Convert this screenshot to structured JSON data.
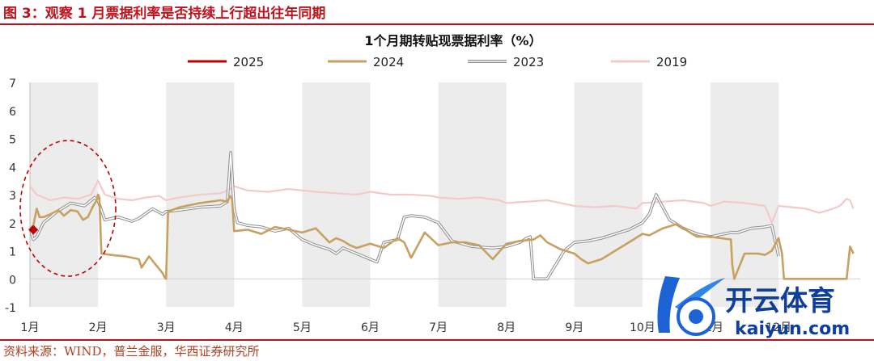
{
  "figure_label": "图 3：观察 1 月票据利率是否持续上行超出往年同期",
  "source_note": "资料来源：WIND，普兰金服，华西证券研究所",
  "watermark": {
    "brand_cn": "开云体育",
    "brand_en": "kaiyun.com"
  },
  "colors": {
    "accent": "#c0121c",
    "s2025": "#c00000",
    "s2024": "#c8a060",
    "s2023": "#a6a6a6",
    "s2019": "#f4c9c9",
    "band": "#ececec",
    "circle": "#c00000"
  },
  "chart_data": {
    "type": "line",
    "title": "1个月期转贴现票据利率（%）",
    "ylim": [
      -1,
      7
    ],
    "yticks": [
      "-1",
      "0",
      "1",
      "2",
      "3",
      "4",
      "5",
      "6",
      "7"
    ],
    "xlim": [
      0,
      12.2
    ],
    "xticks": [
      "1月",
      "2月",
      "3月",
      "4月",
      "5月",
      "6月",
      "7月",
      "8月",
      "9月",
      "10月",
      "11月",
      "12月"
    ],
    "shaded_month_bands": [
      [
        0,
        1
      ],
      [
        2,
        3
      ],
      [
        4,
        5
      ],
      [
        6,
        7
      ],
      [
        8,
        9
      ],
      [
        10,
        11
      ]
    ],
    "legend": "top-center",
    "series": [
      {
        "name": "2025",
        "color": "#c00000",
        "marker": "diamond",
        "x": [
          0.05
        ],
        "y": [
          1.75
        ]
      },
      {
        "name": "2024",
        "color": "#c8a060",
        "x": [
          0.0,
          0.05,
          0.1,
          0.14,
          0.2,
          0.3,
          0.42,
          0.5,
          0.6,
          0.7,
          0.78,
          0.85,
          0.93,
          0.98,
          1.0,
          1.02,
          1.05,
          1.2,
          1.4,
          1.6,
          1.64,
          1.75,
          1.85,
          1.95,
          1.98,
          2.0,
          2.03,
          2.2,
          2.5,
          2.8,
          2.9,
          2.94,
          2.97,
          3.0,
          3.2,
          3.4,
          3.6,
          3.8,
          4.0,
          4.2,
          4.3,
          4.4,
          4.5,
          4.6,
          4.7,
          4.8,
          5.0,
          5.2,
          5.4,
          5.5,
          5.6,
          5.7,
          5.8,
          6.0,
          6.2,
          6.4,
          6.6,
          6.8,
          7.0,
          7.2,
          7.4,
          7.5,
          7.6,
          7.8,
          8.0,
          8.1,
          8.2,
          8.4,
          8.6,
          8.8,
          9.0,
          9.1,
          9.3,
          9.5,
          9.8,
          10.0,
          10.15,
          10.3,
          10.32,
          10.35,
          10.5,
          10.7,
          10.8,
          10.9,
          11.0,
          11.05,
          11.08,
          11.1,
          11.3,
          11.6,
          11.9,
          12.0,
          12.05,
          12.1
        ],
        "y": [
          1.8,
          1.9,
          2.5,
          2.2,
          2.2,
          2.3,
          2.45,
          2.25,
          2.45,
          2.4,
          2.1,
          2.2,
          2.6,
          2.8,
          3.0,
          2.9,
          0.9,
          0.85,
          0.8,
          0.7,
          0.4,
          0.8,
          0.5,
          0.2,
          0.05,
          0.0,
          2.4,
          2.55,
          2.7,
          2.8,
          2.75,
          2.95,
          2.85,
          1.7,
          1.75,
          1.6,
          1.85,
          1.75,
          1.65,
          1.8,
          1.55,
          1.3,
          1.45,
          1.35,
          1.2,
          1.1,
          1.25,
          1.1,
          1.45,
          1.3,
          0.75,
          1.2,
          1.65,
          1.2,
          1.3,
          1.3,
          1.2,
          0.7,
          1.25,
          1.35,
          1.4,
          1.55,
          1.3,
          1.05,
          0.9,
          0.7,
          0.55,
          0.7,
          1.0,
          1.3,
          1.6,
          1.55,
          1.8,
          1.95,
          1.5,
          1.5,
          1.45,
          1.4,
          0.5,
          0.0,
          0.9,
          0.9,
          0.85,
          1.0,
          1.45,
          0.9,
          0.0,
          0.0,
          0.0,
          0.0,
          0.0,
          0.0,
          1.15,
          0.9
        ]
      },
      {
        "name": "2023",
        "color": "#a6a6a6",
        "x": [
          0.0,
          0.05,
          0.1,
          0.2,
          0.4,
          0.6,
          0.8,
          0.95,
          1.0,
          1.1,
          1.3,
          1.5,
          1.6,
          1.8,
          1.95,
          2.0,
          2.2,
          2.5,
          2.8,
          2.9,
          2.95,
          3.0,
          3.05,
          3.2,
          3.4,
          3.6,
          3.8,
          4.0,
          4.2,
          4.4,
          4.5,
          4.6,
          4.8,
          5.0,
          5.1,
          5.2,
          5.4,
          5.5,
          5.6,
          5.8,
          6.0,
          6.2,
          6.5,
          6.8,
          7.0,
          7.2,
          7.3,
          7.35,
          7.4,
          7.6,
          7.8,
          7.85,
          8.0,
          8.2,
          8.4,
          8.6,
          8.8,
          9.0,
          9.1,
          9.2,
          9.4,
          9.6,
          9.8,
          10.0,
          10.2,
          10.3,
          10.4,
          10.6,
          10.8,
          10.9,
          11.0
        ],
        "y": [
          1.8,
          1.4,
          1.5,
          2.0,
          2.4,
          2.7,
          2.6,
          2.9,
          2.8,
          2.1,
          2.2,
          2.05,
          2.15,
          2.5,
          2.3,
          2.4,
          2.45,
          2.55,
          2.6,
          2.75,
          4.5,
          2.5,
          2.0,
          1.9,
          1.85,
          1.7,
          1.8,
          1.4,
          1.2,
          1.05,
          0.9,
          1.1,
          0.9,
          0.7,
          0.6,
          1.3,
          1.4,
          2.2,
          2.25,
          2.2,
          2.0,
          1.35,
          1.15,
          1.1,
          1.15,
          1.3,
          1.45,
          1.5,
          0.0,
          0.0,
          0.8,
          1.0,
          1.3,
          1.35,
          1.45,
          1.6,
          1.75,
          2.0,
          2.3,
          3.0,
          2.1,
          1.8,
          1.6,
          1.5,
          1.6,
          1.65,
          1.65,
          1.8,
          1.85,
          1.9,
          0.8
        ]
      },
      {
        "name": "2019",
        "color": "#f4c9c9",
        "x": [
          0.0,
          0.1,
          0.3,
          0.5,
          0.7,
          0.9,
          1.0,
          1.1,
          1.3,
          1.5,
          1.7,
          1.9,
          2.0,
          2.2,
          2.5,
          2.8,
          2.95,
          3.0,
          3.2,
          3.5,
          3.8,
          4.0,
          4.2,
          4.5,
          4.8,
          5.0,
          5.3,
          5.6,
          5.9,
          6.0,
          6.3,
          6.6,
          6.9,
          7.0,
          7.3,
          7.6,
          7.9,
          8.0,
          8.3,
          8.6,
          8.9,
          9.0,
          9.3,
          9.6,
          9.9,
          10.0,
          10.2,
          10.5,
          10.8,
          10.9,
          11.0,
          11.2,
          11.4,
          11.6,
          11.8,
          11.9,
          12.0,
          12.05,
          12.1
        ],
        "y": [
          3.3,
          3.0,
          2.8,
          2.9,
          2.85,
          3.0,
          3.5,
          3.0,
          2.85,
          2.8,
          2.9,
          2.95,
          2.8,
          2.9,
          3.0,
          3.05,
          3.2,
          3.3,
          3.15,
          3.1,
          3.2,
          3.15,
          3.1,
          3.05,
          3.0,
          3.1,
          3.0,
          3.0,
          2.95,
          2.9,
          2.85,
          2.9,
          2.8,
          2.7,
          2.75,
          2.8,
          2.65,
          2.6,
          2.55,
          2.6,
          2.5,
          2.7,
          2.75,
          2.8,
          2.7,
          2.6,
          2.75,
          2.7,
          2.6,
          2.0,
          2.6,
          2.55,
          2.5,
          2.35,
          2.5,
          2.6,
          2.85,
          2.8,
          2.5
        ]
      }
    ]
  }
}
